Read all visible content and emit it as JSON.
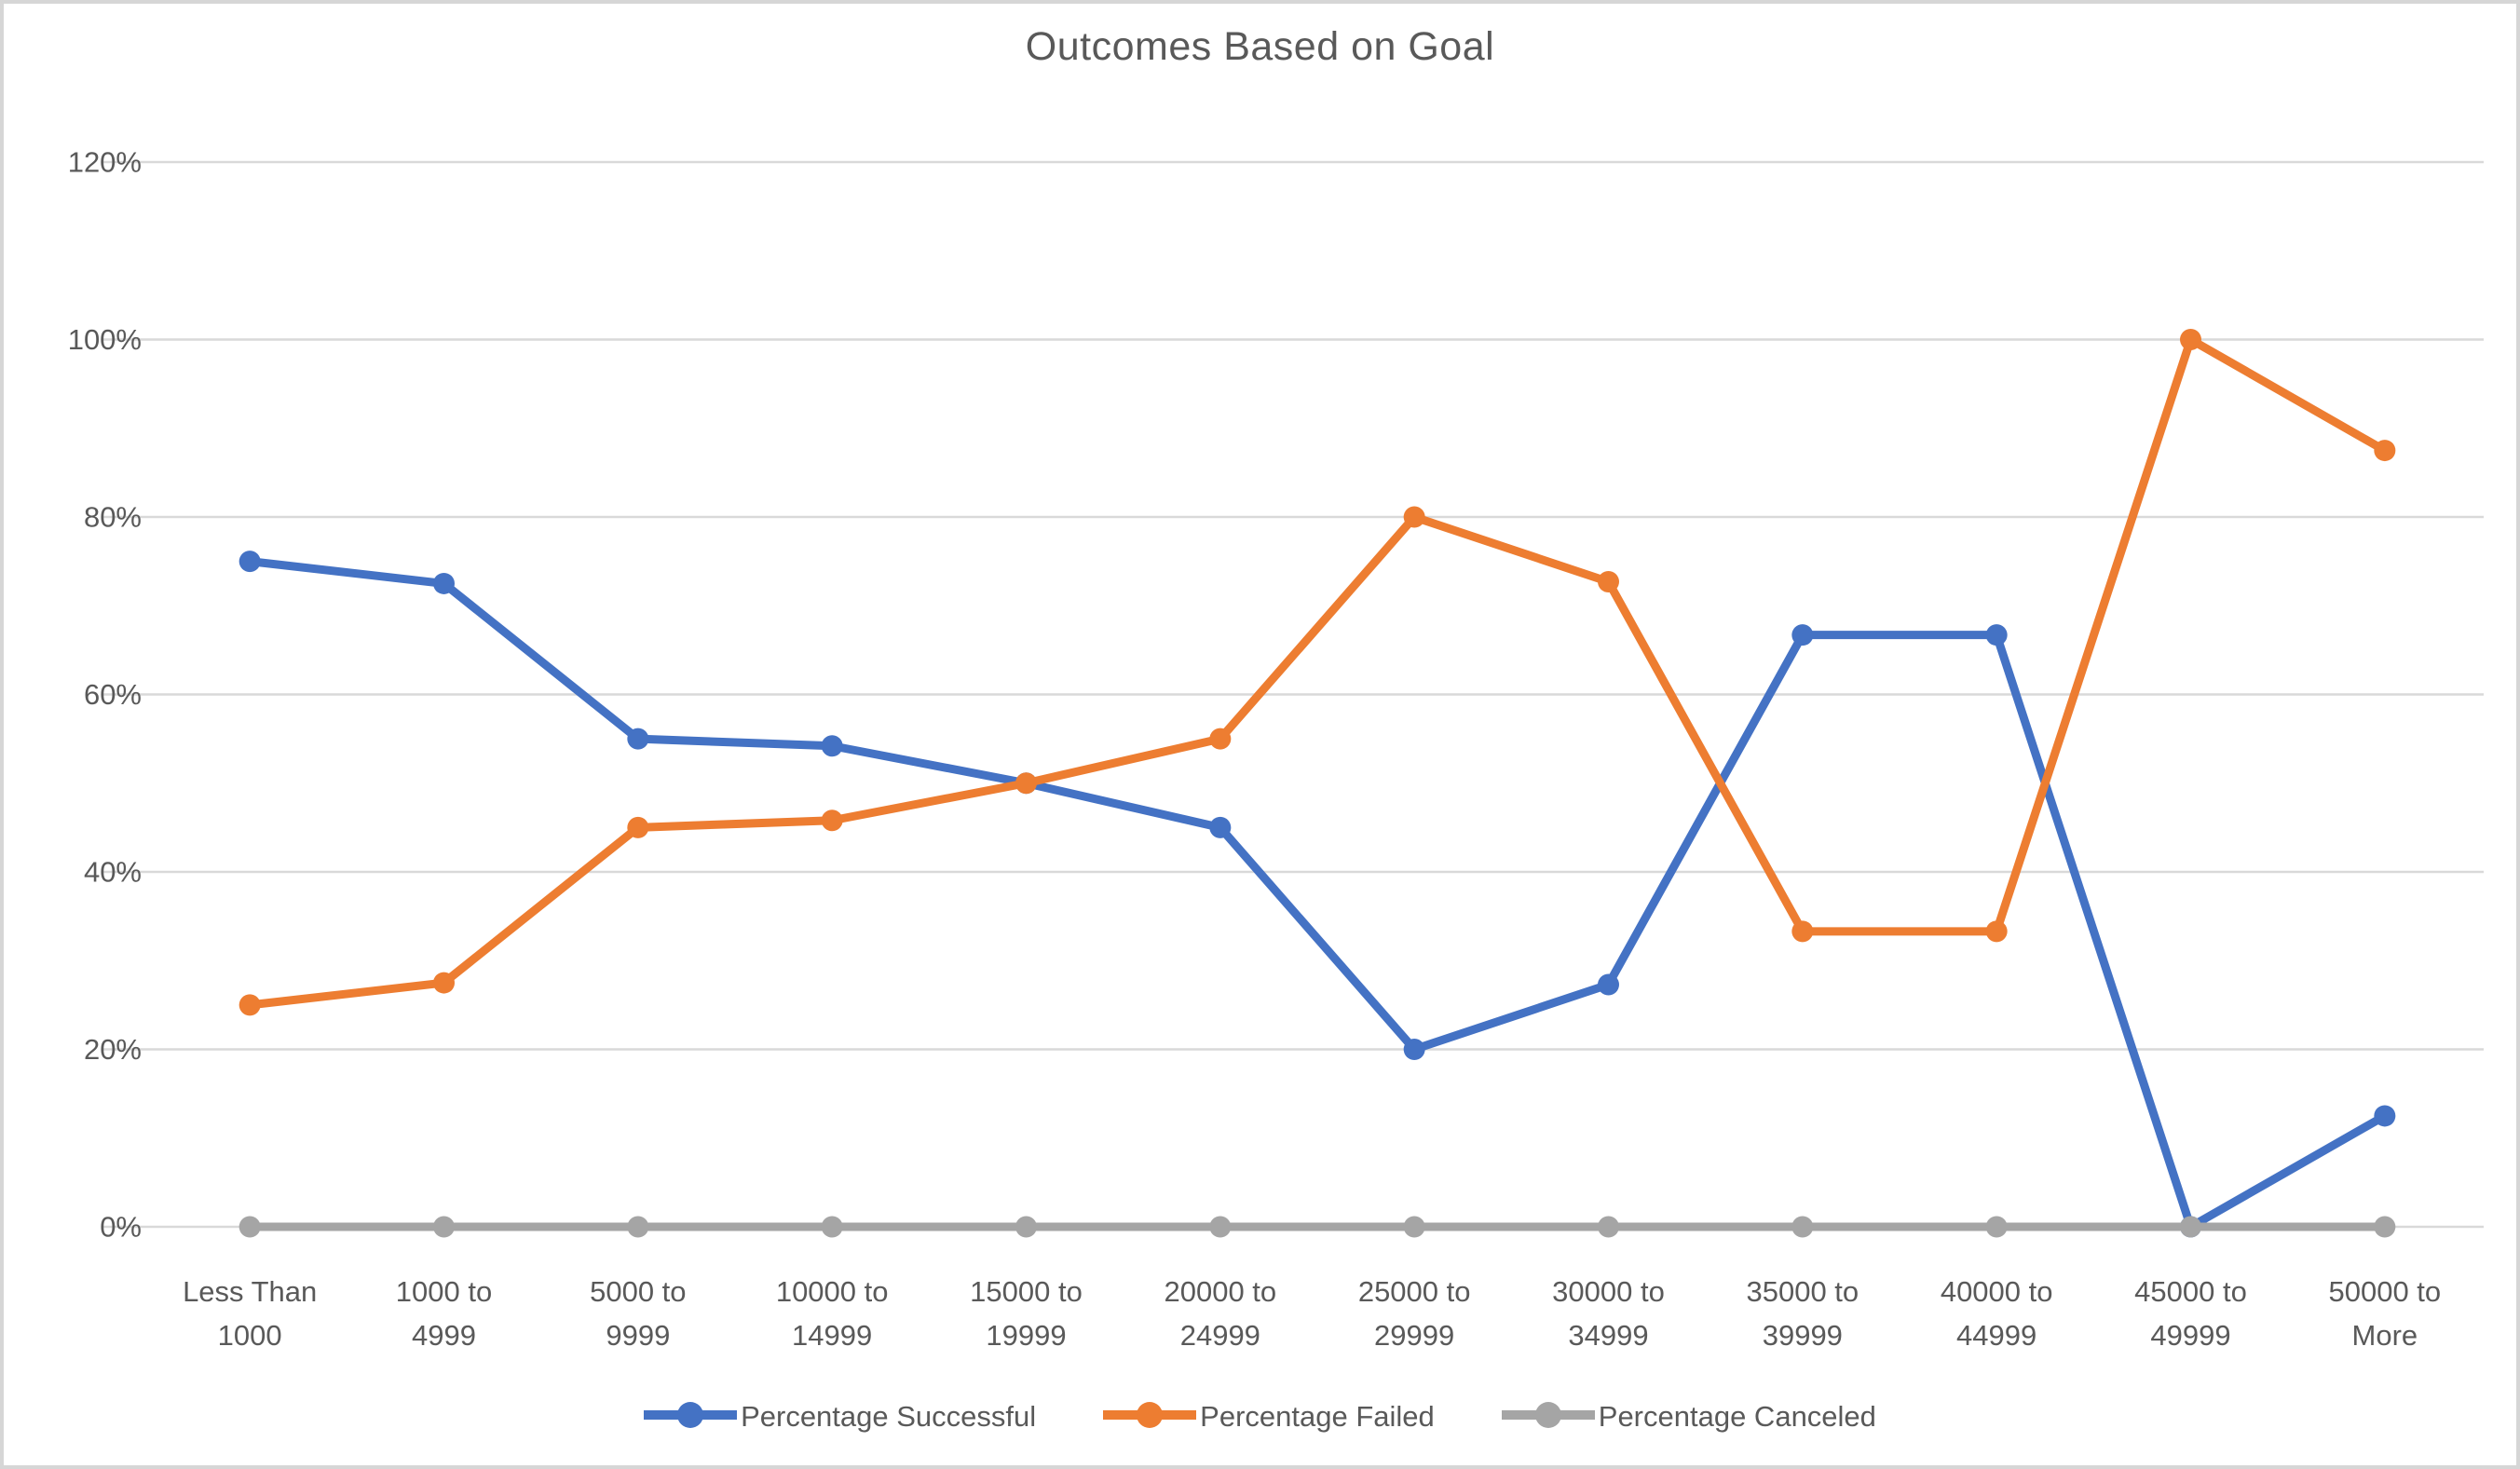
{
  "chart_data": {
    "type": "line",
    "title": "Outcomes Based on Goal",
    "categories": [
      "Less Than 1000",
      "1000 to 4999",
      "5000 to 9999",
      "10000 to 14999",
      "15000 to 19999",
      "20000 to 24999",
      "25000 to 29999",
      "30000 to 34999",
      "35000 to 39999",
      "40000 to 44999",
      "45000 to 49999",
      "50000 to More"
    ],
    "series": [
      {
        "name": "Percentage Successful",
        "color": "#4472C4",
        "values": [
          75,
          72.5,
          55,
          54.2,
          50,
          45,
          20,
          27.3,
          66.7,
          66.7,
          0,
          12.5
        ]
      },
      {
        "name": "Percentage Failed",
        "color": "#ED7D31",
        "values": [
          25,
          27.5,
          45,
          45.8,
          50,
          55,
          80,
          72.7,
          33.3,
          33.3,
          100,
          87.5
        ]
      },
      {
        "name": "Percentage Canceled",
        "color": "#A5A5A5",
        "values": [
          0,
          0,
          0,
          0,
          0,
          0,
          0,
          0,
          0,
          0,
          0,
          0
        ]
      }
    ],
    "y_axis": {
      "tick_labels": [
        "0%",
        "20%",
        "40%",
        "60%",
        "80%",
        "100%",
        "120%"
      ],
      "tick_values": [
        0,
        20,
        40,
        60,
        80,
        100,
        120
      ],
      "min": 0,
      "max": 120
    },
    "xlabel": "",
    "ylabel": "",
    "grid": true,
    "legend_position": "bottom",
    "colors": {
      "text": "#595959",
      "gridline": "#d9d9d9",
      "frame_border": "#d6d6d6",
      "background": "#ffffff"
    }
  }
}
